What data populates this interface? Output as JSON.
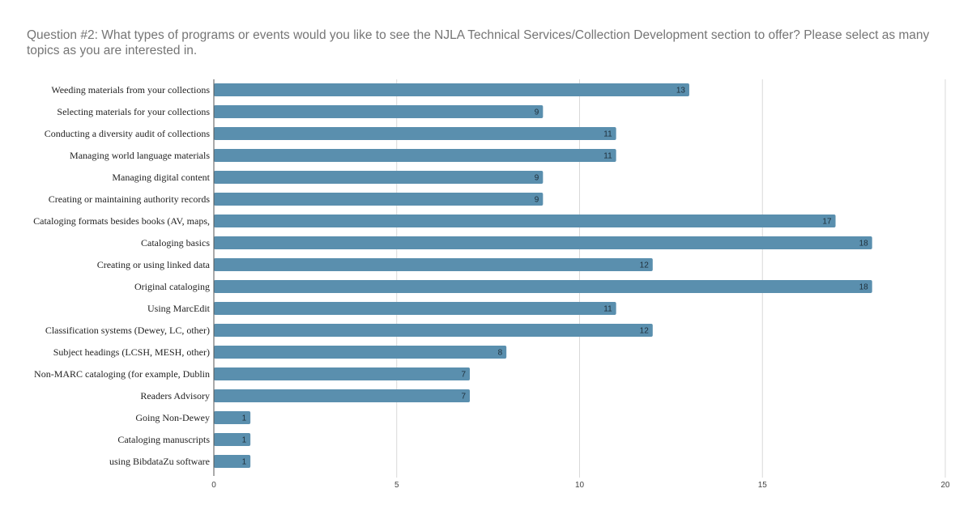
{
  "chart_data": {
    "type": "bar",
    "orientation": "horizontal",
    "title": "Question #2: What types of programs or events would you like to see the NJLA Technical Services/Collection Development section to offer?  Please select as many topics as you are interested in.",
    "xlabel": "",
    "ylabel": "",
    "xlim": [
      0,
      20
    ],
    "xticks": [
      0,
      5,
      10,
      15,
      20
    ],
    "grid": true,
    "legend": "none",
    "bar_color": "#5a8fae",
    "categories": [
      "Weeding materials from your collections",
      "Selecting materials for your collections",
      "Conducting a diversity audit of collections",
      "Managing world language materials",
      "Managing digital content",
      "Creating or maintaining authority records",
      "Cataloging formats besides books (AV, maps,",
      "Cataloging basics",
      "Creating or using linked data",
      "Original cataloging",
      "Using MarcEdit",
      "Classification systems (Dewey, LC, other)",
      "Subject headings (LCSH, MESH, other)",
      "Non-MARC cataloging (for example, Dublin",
      "Readers Advisory",
      "Going Non-Dewey",
      "Cataloging manuscripts",
      "using BibdataZu software"
    ],
    "values": [
      13,
      9,
      11,
      11,
      9,
      9,
      17,
      18,
      12,
      18,
      11,
      12,
      8,
      7,
      7,
      1,
      1,
      1
    ]
  }
}
